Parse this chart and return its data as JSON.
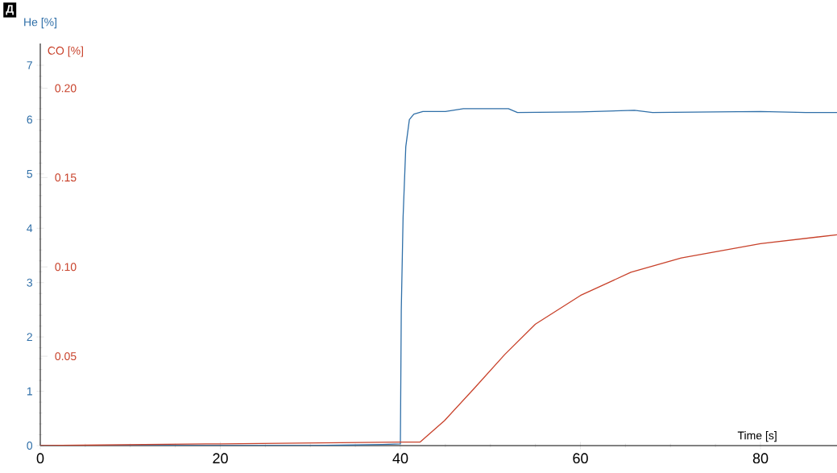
{
  "chart_data": {
    "type": "line",
    "xlabel": "Time [s]",
    "ylabel": "He [%]",
    "y2label": "CO [%]",
    "annotations": [
      "Д"
    ],
    "xlim": [
      0,
      88.5
    ],
    "xticks": [
      0,
      20,
      40,
      60,
      80
    ],
    "ylim": [
      0,
      7.4
    ],
    "yticks": [
      0,
      1,
      2,
      3,
      4,
      5,
      6,
      7
    ],
    "y2lim": [
      0,
      0.225
    ],
    "y2ticks": [
      0.05,
      {
        "value": 0.1,
        "label": "0.10"
      },
      0.15,
      {
        "value": 0.2,
        "label": "0.20"
      }
    ],
    "series": [
      {
        "color": "#2f6fa8",
        "x": [
          0,
          10,
          20,
          30,
          38,
          40.0,
          40.1,
          40.3,
          40.6,
          41.0,
          41.5,
          42.5,
          45,
          47,
          52,
          53,
          60,
          66,
          68,
          75,
          80,
          85,
          88.5
        ],
        "values": [
          0,
          0,
          0,
          0,
          0.02,
          0.03,
          2.5,
          4.2,
          5.5,
          6.0,
          6.1,
          6.15,
          6.15,
          6.2,
          6.2,
          6.13,
          6.14,
          6.17,
          6.13,
          6.14,
          6.15,
          6.13,
          6.13
        ]
      },
      {
        "color": "#c8412a",
        "axis": "y2",
        "x": [
          0,
          20,
          40,
          42.2,
          44.9,
          48.2,
          51.6,
          55,
          60,
          65.6,
          71.2,
          80,
          88.5
        ],
        "values": [
          0,
          0.001,
          0.002,
          0.002,
          0.014,
          0.032,
          0.051,
          0.068,
          0.084,
          0.097,
          0.105,
          0.113,
          0.118
        ]
      }
    ]
  }
}
